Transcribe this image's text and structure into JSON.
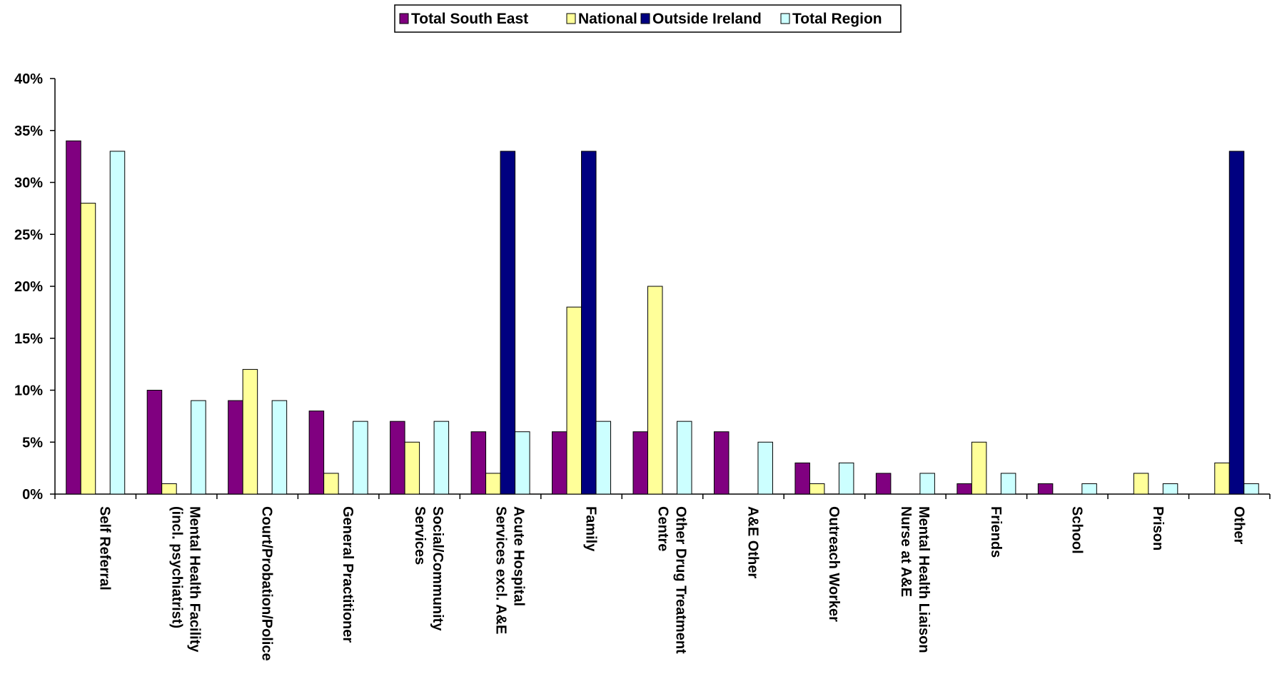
{
  "chart_data": {
    "type": "bar",
    "title": "",
    "xlabel": "",
    "ylabel": "",
    "ylim": [
      0,
      40
    ],
    "y_ticks": [
      0,
      5,
      10,
      15,
      20,
      25,
      30,
      35,
      40
    ],
    "y_tick_labels": [
      "0%",
      "5%",
      "10%",
      "15%",
      "20%",
      "25%",
      "30%",
      "35%",
      "40%"
    ],
    "y_unit": "%",
    "grid": false,
    "legend_position": "top-center",
    "categories": [
      [
        "Self Referral"
      ],
      [
        "Mental Health Facility",
        "(incl. psychiatrist)"
      ],
      [
        "Court/Probation/Police"
      ],
      [
        "General Practitioner"
      ],
      [
        "Social/Community",
        "Services"
      ],
      [
        "Acute Hospital",
        "Services excl. A&E"
      ],
      [
        "Family"
      ],
      [
        "Other Drug Treatment",
        "Centre"
      ],
      [
        "A&E Other"
      ],
      [
        "Outreach Worker"
      ],
      [
        "Mental Health Liaison",
        "Nurse at A&E"
      ],
      [
        "Friends"
      ],
      [
        "School"
      ],
      [
        "Prison"
      ],
      [
        "Other"
      ]
    ],
    "series": [
      {
        "name": "Total South East",
        "color": "#800080",
        "values": [
          34,
          10,
          9,
          8,
          7,
          6,
          6,
          6,
          6,
          3,
          2,
          1,
          1,
          0,
          0
        ]
      },
      {
        "name": "National",
        "color": "#FFFF99",
        "values": [
          28,
          1,
          12,
          2,
          5,
          2,
          18,
          20,
          0,
          1,
          0,
          5,
          0,
          2,
          3
        ]
      },
      {
        "name": "Outside Ireland",
        "color": "#000080",
        "values": [
          0,
          0,
          0,
          0,
          0,
          33,
          33,
          0,
          0,
          0,
          0,
          0,
          0,
          0,
          33
        ]
      },
      {
        "name": "Total Region",
        "color": "#CCFFFF",
        "values": [
          33,
          9,
          9,
          7,
          7,
          6,
          7,
          7,
          5,
          3,
          2,
          2,
          1,
          1,
          1
        ]
      }
    ]
  }
}
